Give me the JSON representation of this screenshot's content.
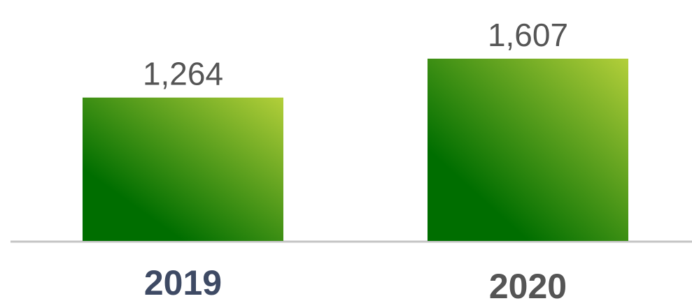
{
  "chart_data": {
    "type": "bar",
    "categories": [
      "2019",
      "2020"
    ],
    "values": [
      1264,
      1607
    ],
    "value_labels": [
      "1,264",
      "1,607"
    ],
    "color": [
      "#006e00",
      "#b3cf3a"
    ],
    "category_label_colors": [
      "#3e4a64",
      "#555555"
    ]
  }
}
